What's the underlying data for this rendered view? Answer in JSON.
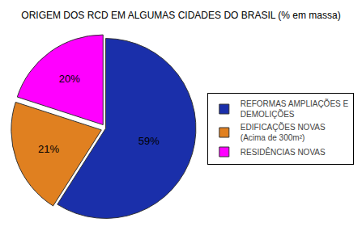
{
  "chart_data": {
    "type": "pie",
    "title": "ORIGEM DOS RCD EM ALGUMAS CIDADES DO BRASIL (% em massa)",
    "categories": [
      "REFORMAS AMPLIAÇÕES E\nDEMOLIÇÕES",
      "EDIFICAÇÕES NOVAS\n(Acima de 300m²)",
      "RESIDÊNCIAS NOVAS"
    ],
    "values": [
      59,
      21,
      20
    ],
    "value_labels": [
      "59%",
      "21%",
      "20%"
    ],
    "colors": [
      "#1a2faa",
      "#e08020",
      "#ff00ff"
    ],
    "data_labels": true,
    "legend": "right"
  }
}
